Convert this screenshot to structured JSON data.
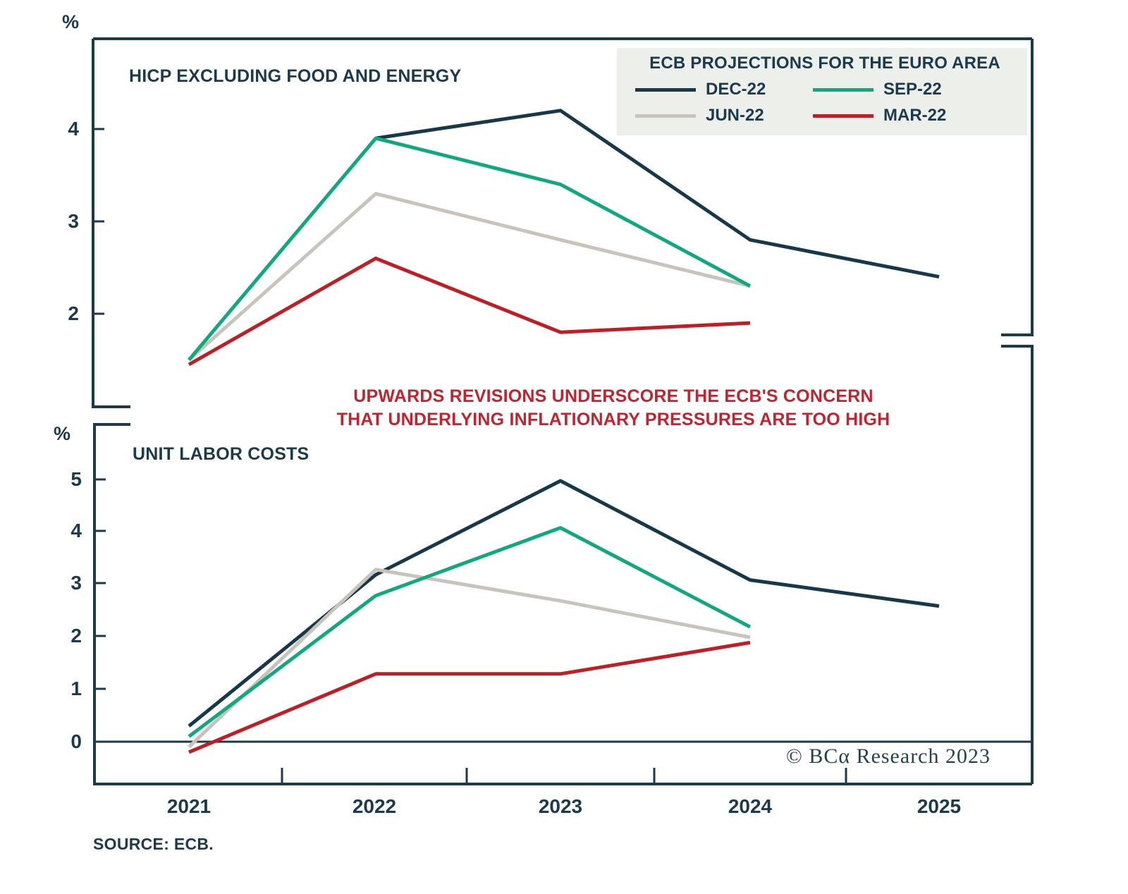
{
  "top_chart": {
    "unit_label": "%",
    "title": "HICP EXCLUDING FOOD AND ENERGY",
    "y_tick_labels": [
      "4",
      "3",
      "2"
    ]
  },
  "bottom_chart": {
    "unit_label": "%",
    "title": "UNIT LABOR COSTS",
    "y_tick_labels": [
      "5",
      "4",
      "3",
      "2",
      "1",
      "0"
    ]
  },
  "x_axis": {
    "labels": [
      "2021",
      "2022",
      "2023",
      "2024",
      "2025"
    ]
  },
  "legend": {
    "title": "ECB PROJECTIONS FOR THE EURO AREA",
    "items": [
      {
        "label": "DEC-22",
        "color": "#17384a"
      },
      {
        "label": "SEP-22",
        "color": "#10a87e"
      },
      {
        "label": "JUN-22",
        "color": "#c8c4bc"
      },
      {
        "label": "MAR-22",
        "color": "#c01e25"
      }
    ]
  },
  "annotation": {
    "line1": "UPWARDS REVISIONS UNDERSCORE THE ECB'S CONCERN",
    "line2": "THAT UNDERLYING INFLATIONARY PRESSURES ARE TOO HIGH",
    "color": "#c3232f"
  },
  "source": "SOURCE: ECB.",
  "copyright": "© BCα Research 2023",
  "chart_data": [
    {
      "type": "line",
      "title": "HICP EXCLUDING FOOD AND ENERGY",
      "ylabel": "%",
      "xlabel": "",
      "ylim": [
        1.0,
        5.0
      ],
      "y_ticks": [
        2,
        3,
        4
      ],
      "x_labels": [
        "2021",
        "2022",
        "2023",
        "2024",
        "2025"
      ],
      "grid": false,
      "series": [
        {
          "name": "DEC-22",
          "color": "#17384a",
          "x": [
            2022,
            2023,
            2024,
            2025
          ],
          "values": [
            3.9,
            4.2,
            2.8,
            2.4
          ]
        },
        {
          "name": "JUN-22",
          "color": "#c8c4bc",
          "x": [
            2021,
            2022,
            2023,
            2024
          ],
          "values": [
            1.5,
            3.3,
            2.8,
            2.3
          ]
        },
        {
          "name": "SEP-22",
          "color": "#10a87e",
          "x": [
            2021,
            2022,
            2023,
            2024
          ],
          "values": [
            1.5,
            3.9,
            3.4,
            2.3
          ]
        },
        {
          "name": "MAR-22",
          "color": "#c01e25",
          "x": [
            2021,
            2022,
            2023,
            2024
          ],
          "values": [
            1.45,
            2.6,
            1.8,
            1.9
          ]
        }
      ]
    },
    {
      "type": "line",
      "title": "UNIT LABOR COSTS",
      "ylabel": "%",
      "xlabel": "",
      "ylim": [
        -0.8,
        5.6
      ],
      "y_ticks": [
        0,
        1,
        2,
        3,
        4,
        5
      ],
      "x_labels": [
        "2021",
        "2022",
        "2023",
        "2024",
        "2025"
      ],
      "grid": false,
      "zero_line": true,
      "series": [
        {
          "name": "DEC-22",
          "color": "#17384a",
          "x": [
            2021,
            2022,
            2023,
            2024,
            2025
          ],
          "values": [
            0.3,
            3.2,
            5.0,
            3.1,
            2.6
          ]
        },
        {
          "name": "JUN-22",
          "color": "#c8c4bc",
          "x": [
            2021,
            2022,
            2023,
            2024
          ],
          "values": [
            -0.1,
            3.3,
            2.7,
            2.0
          ]
        },
        {
          "name": "SEP-22",
          "color": "#10a87e",
          "x": [
            2021,
            2022,
            2023,
            2024
          ],
          "values": [
            0.1,
            2.8,
            4.1,
            2.2
          ]
        },
        {
          "name": "MAR-22",
          "color": "#c01e25",
          "x": [
            2021,
            2022,
            2023,
            2024
          ],
          "values": [
            -0.2,
            1.3,
            1.3,
            1.9
          ]
        }
      ]
    }
  ]
}
